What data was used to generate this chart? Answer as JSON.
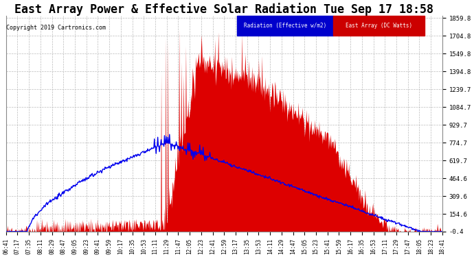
{
  "title": "East Array Power & Effective Solar Radiation Tue Sep 17 18:58",
  "copyright": "Copyright 2019 Cartronics.com",
  "legend_labels": [
    "Radiation (Effective w/m2)",
    "East Array (DC Watts)"
  ],
  "ylim": [
    -0.4,
    1859.8
  ],
  "yticks": [
    1859.8,
    1704.8,
    1549.8,
    1394.8,
    1239.7,
    1084.7,
    929.7,
    774.7,
    619.7,
    464.6,
    309.6,
    154.6,
    -0.4
  ],
  "background_color": "#ffffff",
  "plot_bg_color": "#ffffff",
  "grid_color": "#bbbbbb",
  "title_fontsize": 12,
  "xtick_labels": [
    "06:41",
    "07:17",
    "07:35",
    "08:11",
    "08:29",
    "08:47",
    "09:05",
    "09:23",
    "09:41",
    "09:59",
    "10:17",
    "10:35",
    "10:53",
    "11:11",
    "11:29",
    "11:47",
    "12:05",
    "12:23",
    "12:41",
    "12:59",
    "13:17",
    "13:35",
    "13:53",
    "14:11",
    "14:29",
    "14:47",
    "15:05",
    "15:23",
    "15:41",
    "15:59",
    "16:17",
    "16:35",
    "16:53",
    "17:11",
    "17:29",
    "17:47",
    "18:05",
    "18:23",
    "18:41"
  ],
  "n_points": 780,
  "red_fill_color": "#dd0000",
  "blue_line_color": "#0000ee"
}
